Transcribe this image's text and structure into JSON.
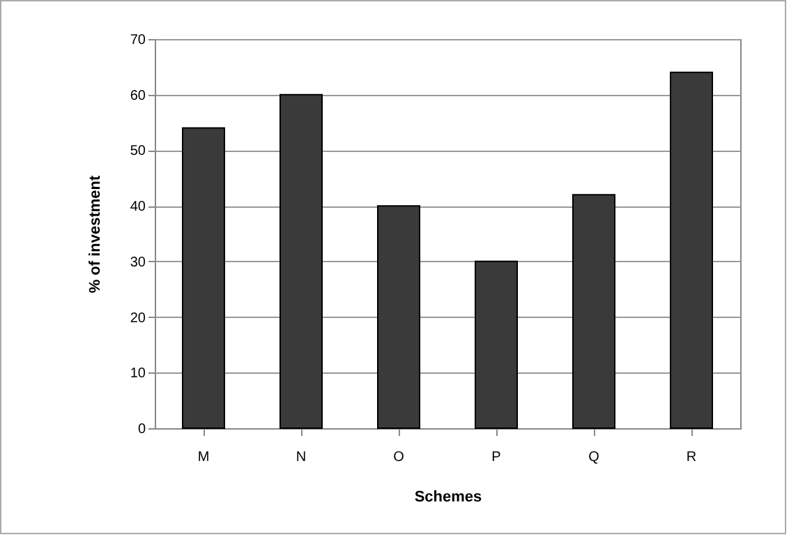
{
  "chart_data": {
    "type": "bar",
    "xlabel": "Schemes",
    "ylabel": "% of investment",
    "categories": [
      "M",
      "N",
      "O",
      "P",
      "Q",
      "R"
    ],
    "values": [
      54,
      60,
      40,
      30,
      42,
      64
    ],
    "color": "#3a3a3a",
    "ylim": [
      0,
      70
    ],
    "yticks": [
      0,
      10,
      20,
      30,
      40,
      50,
      60,
      70
    ],
    "grid": "y"
  }
}
